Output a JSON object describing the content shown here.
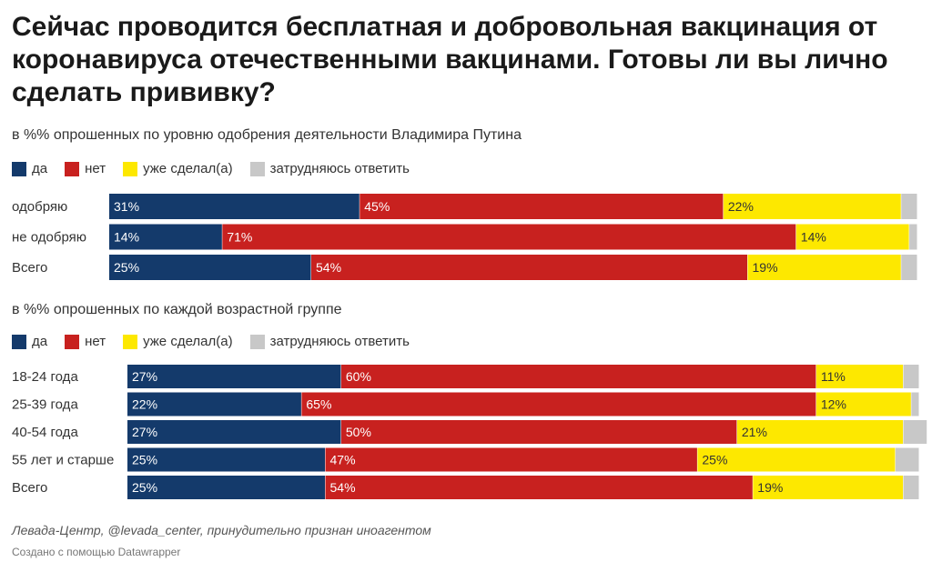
{
  "title": "Сейчас проводится бесплатная и добровольная вакцинация от коронавируса отечественными вакцинами. Готовы ли вы лично сделать прививку?",
  "legend": [
    {
      "label": "да",
      "color": "#143a6b"
    },
    {
      "label": "нет",
      "color": "#c8211f"
    },
    {
      "label": "уже сделал(а)",
      "color": "#fde800"
    },
    {
      "label": "затрудняюсь ответить",
      "color": "#c8c8c8"
    }
  ],
  "source": "Левада-Центр, @levada_center, принудительно признан иноагентом",
  "credit": "Создано с помощью Datawrapper",
  "chart_data": [
    {
      "type": "bar",
      "stacked": true,
      "orientation": "horizontal",
      "subtitle": "в %% опрошенных по уровню одобрения деятельности Владимира Путина",
      "categories": [
        "одобряю",
        "не одобряю",
        "Всего"
      ],
      "series": [
        {
          "name": "да",
          "values": [
            31,
            14,
            25
          ]
        },
        {
          "name": "нет",
          "values": [
            45,
            71,
            54
          ]
        },
        {
          "name": "уже сделал(а)",
          "values": [
            22,
            14,
            19
          ]
        },
        {
          "name": "затрудняюсь ответить",
          "values": [
            2,
            1,
            2
          ]
        }
      ],
      "value_labels_shown_for": [
        "да",
        "нет",
        "уже сделал(а)"
      ],
      "xlim": [
        0,
        100
      ]
    },
    {
      "type": "bar",
      "stacked": true,
      "orientation": "horizontal",
      "subtitle": "в %% опрошенных  по каждой возрастной группе",
      "categories": [
        "18-24 года",
        "25-39 года",
        "40-54 года",
        "55 лет и старше",
        "Всего"
      ],
      "series": [
        {
          "name": "да",
          "values": [
            27,
            22,
            27,
            25,
            25
          ]
        },
        {
          "name": "нет",
          "values": [
            60,
            65,
            50,
            47,
            54
          ]
        },
        {
          "name": "уже сделал(а)",
          "values": [
            11,
            12,
            21,
            25,
            19
          ]
        },
        {
          "name": "затрудняюсь ответить",
          "values": [
            2,
            1,
            3,
            3,
            2
          ]
        }
      ],
      "value_labels_shown_for": [
        "да",
        "нет",
        "уже сделал(а)"
      ],
      "xlim": [
        0,
        100
      ]
    }
  ]
}
